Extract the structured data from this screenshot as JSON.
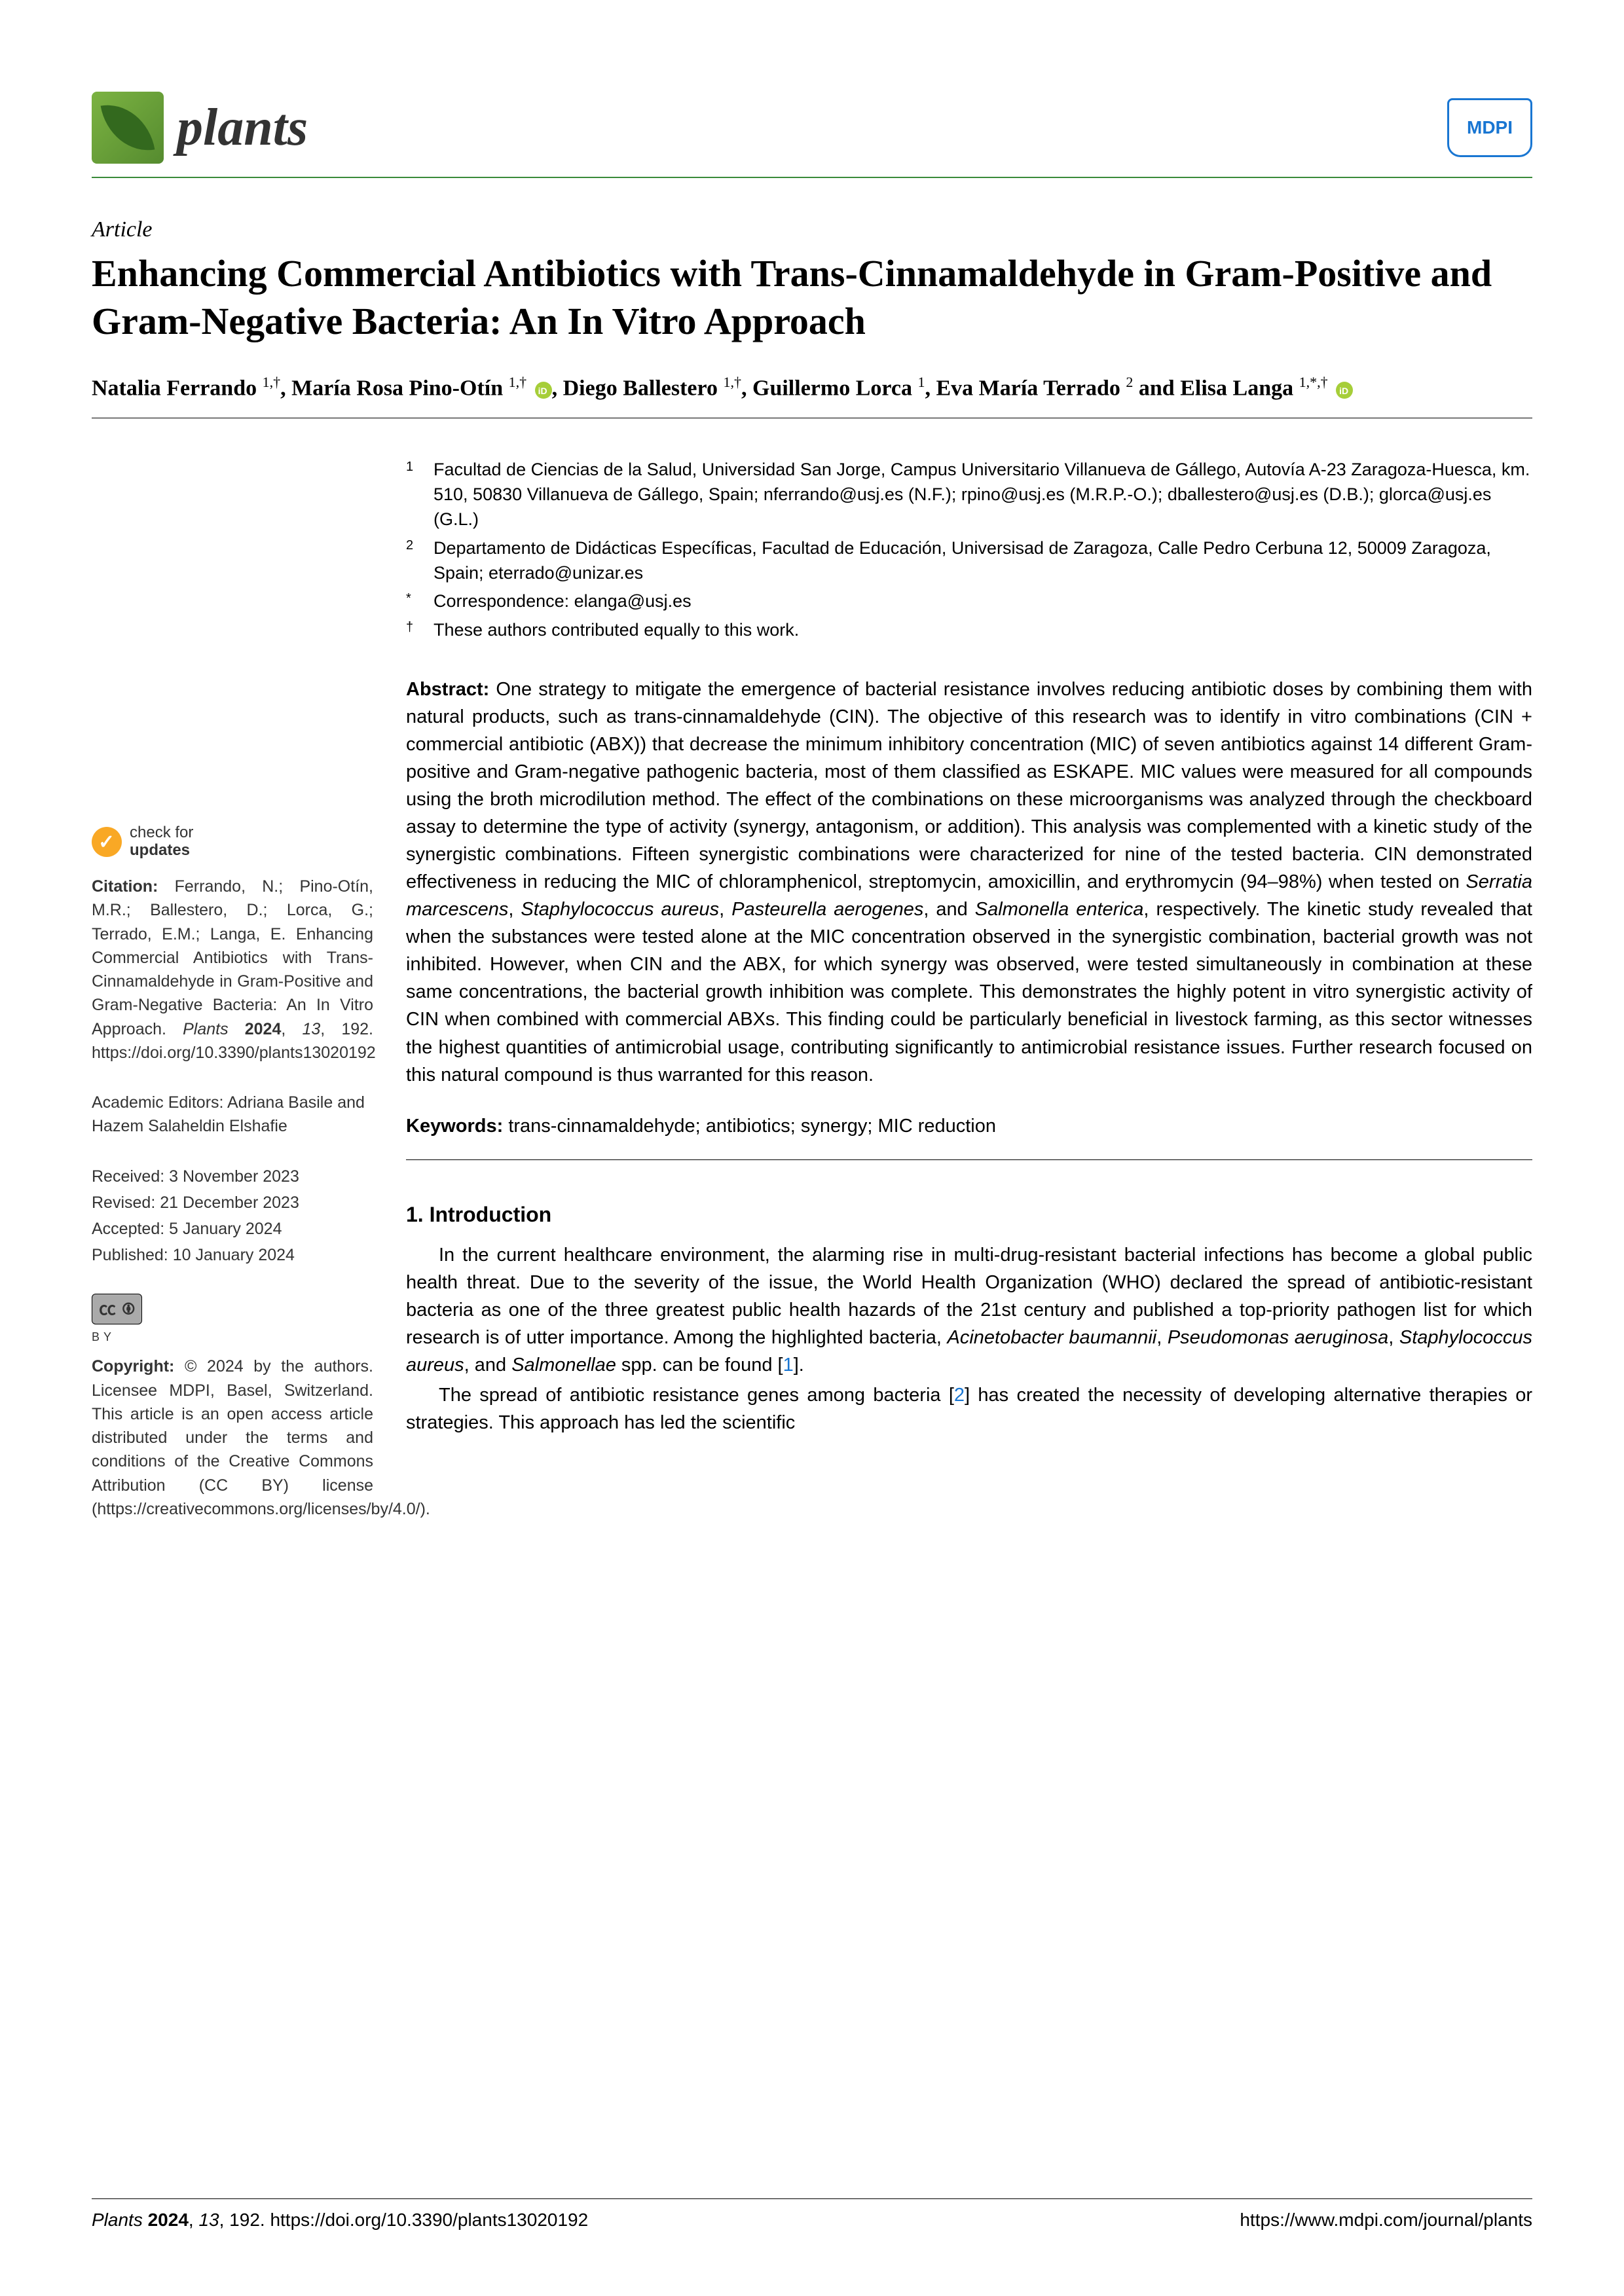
{
  "journal": {
    "name": "plants",
    "publisher": "MDPI"
  },
  "article": {
    "type": "Article",
    "title": "Enhancing Commercial Antibiotics with Trans-Cinnamaldehyde in Gram-Positive and Gram-Negative Bacteria: An In Vitro Approach"
  },
  "authors": {
    "list_html": "Natalia Ferrando <sup>1,†</sup>, María Rosa Pino-Otín <sup>1,†</sup> <span class='orcid'></span>, Diego Ballestero <sup>1,†</sup>, Guillermo Lorca <sup>1</sup>, Eva María Terrado <sup>2</sup> and Elisa Langa <sup>1,*,†</sup> <span class='orcid'></span>"
  },
  "affiliations": [
    {
      "marker": "1",
      "text": "Facultad de Ciencias de la Salud, Universidad San Jorge, Campus Universitario Villanueva de Gállego, Autovía A-23 Zaragoza-Huesca, km. 510, 50830 Villanueva de Gállego, Spain; nferrando@usj.es (N.F.); rpino@usj.es (M.R.P.-O.); dballestero@usj.es (D.B.); glorca@usj.es (G.L.)"
    },
    {
      "marker": "2",
      "text": "Departamento de Didácticas Específicas, Facultad de Educación, Universisad de Zaragoza, Calle Pedro Cerbuna 12, 50009 Zaragoza, Spain; eterrado@unizar.es"
    },
    {
      "marker": "*",
      "text": "Correspondence: elanga@usj.es"
    },
    {
      "marker": "†",
      "text": "These authors contributed equally to this work."
    }
  ],
  "abstract": {
    "label": "Abstract:",
    "text": "One strategy to mitigate the emergence of bacterial resistance involves reducing antibiotic doses by combining them with natural products, such as trans-cinnamaldehyde (CIN). The objective of this research was to identify in vitro combinations (CIN + commercial antibiotic (ABX)) that decrease the minimum inhibitory concentration (MIC) of seven antibiotics against 14 different Gram-positive and Gram-negative pathogenic bacteria, most of them classified as ESKAPE. MIC values were measured for all compounds using the broth microdilution method. The effect of the combinations on these microorganisms was analyzed through the checkboard assay to determine the type of activity (synergy, antagonism, or addition). This analysis was complemented with a kinetic study of the synergistic combinations. Fifteen synergistic combinations were characterized for nine of the tested bacteria. CIN demonstrated effectiveness in reducing the MIC of chloramphenicol, streptomycin, amoxicillin, and erythromycin (94–98%) when tested on <i>Serratia marcescens</i>, <i>Staphylococcus aureus</i>, <i>Pasteurella aerogenes</i>, and <i>Salmonella enterica</i>, respectively. The kinetic study revealed that when the substances were tested alone at the MIC concentration observed in the synergistic combination, bacterial growth was not inhibited. However, when CIN and the ABX, for which synergy was observed, were tested simultaneously in combination at these same concentrations, the bacterial growth inhibition was complete. This demonstrates the highly potent in vitro synergistic activity of CIN when combined with commercial ABXs. This finding could be particularly beneficial in livestock farming, as this sector witnesses the highest quantities of antimicrobial usage, contributing significantly to antimicrobial resistance issues. Further research focused on this natural compound is thus warranted for this reason."
  },
  "keywords": {
    "label": "Keywords:",
    "text": "trans-cinnamaldehyde; antibiotics; synergy; MIC reduction"
  },
  "sidebar": {
    "check_updates": {
      "line1": "check for",
      "line2": "updates"
    },
    "citation": {
      "label": "Citation:",
      "text": "Ferrando, N.; Pino-Otín, M.R.; Ballestero, D.; Lorca, G.; Terrado, E.M.; Langa, E. Enhancing Commercial Antibiotics with Trans-Cinnamaldehyde in Gram-Positive and Gram-Negative Bacteria: An In Vitro Approach. <i>Plants</i> <b>2024</b>, <i>13</i>, 192. https://doi.org/10.3390/plants13020192"
    },
    "editors": {
      "label": "Academic Editors:",
      "text": "Adriana Basile and Hazem Salaheldin Elshafie"
    },
    "dates": {
      "received": "Received: 3 November 2023",
      "revised": "Revised: 21 December 2023",
      "accepted": "Accepted: 5 January 2024",
      "published": "Published: 10 January 2024"
    },
    "cc_label": "CC  ⓘ",
    "cc_by": "BY",
    "copyright": {
      "label": "Copyright:",
      "text": "© 2024 by the authors. Licensee MDPI, Basel, Switzerland. This article is an open access article distributed under the terms and conditions of the Creative Commons Attribution (CC BY) license (https://creativecommons.org/licenses/by/4.0/)."
    }
  },
  "section1": {
    "heading": "1. Introduction",
    "p1_html": "In the current healthcare environment, the alarming rise in multi-drug-resistant bacterial infections has become a global public health threat. Due to the severity of the issue, the World Health Organization (WHO) declared the spread of antibiotic-resistant bacteria as one of the three greatest public health hazards of the 21st century and published a top-priority pathogen list for which research is of utter importance. Among the highlighted bacteria, <i>Acinetobacter baumannii</i>, <i>Pseudomonas aeruginosa</i>, <i>Staphylococcus aureus</i>, and <i>Salmonellae</i> spp. can be found [<span class='ref-link'>1</span>].",
    "p2_html": "The spread of antibiotic resistance genes among bacteria [<span class='ref-link'>2</span>] has created the necessity of developing alternative therapies or strategies. This approach has led the scientific"
  },
  "footer": {
    "left": "Plants 2024, 13, 192. https://doi.org/10.3390/plants13020192",
    "right": "https://www.mdpi.com/journal/plants"
  },
  "colors": {
    "accent_green": "#3a8a3a",
    "link_blue": "#1976d2",
    "orcid_green": "#a6ce39",
    "check_yellow": "#f9a825"
  }
}
